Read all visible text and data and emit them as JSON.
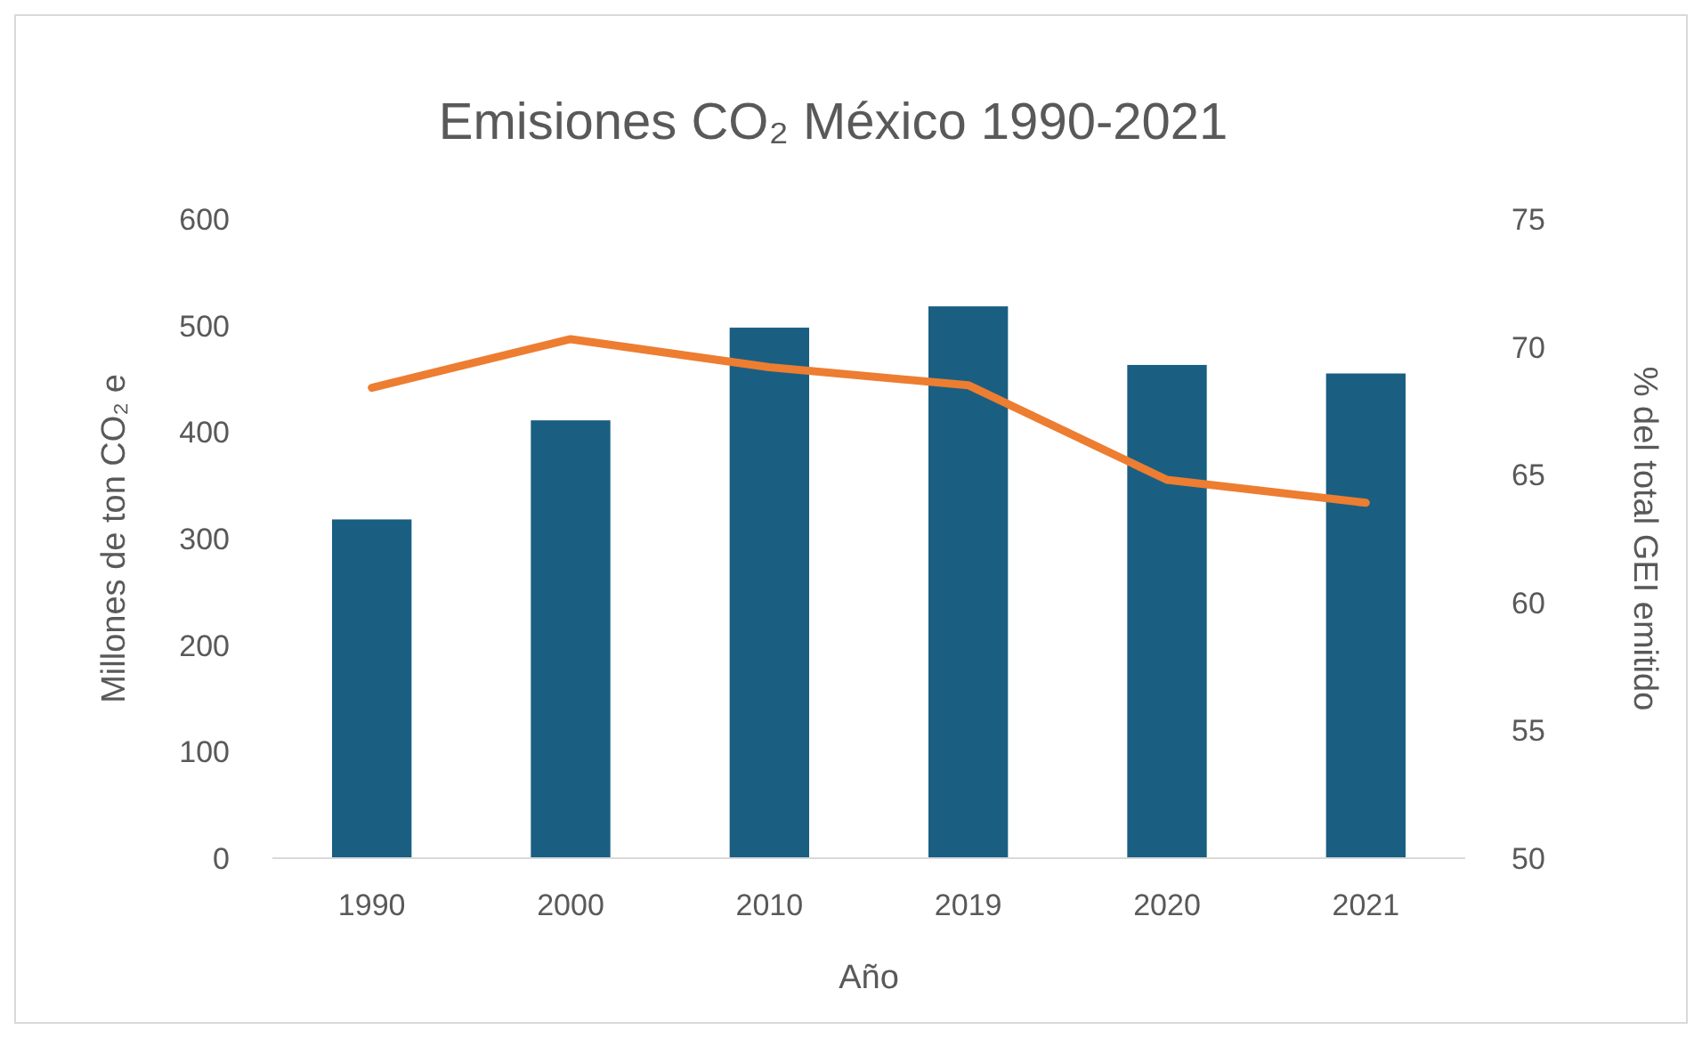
{
  "chart_data": {
    "type": "bar",
    "title": "Emisiones CO₂ México 1990-2021",
    "xlabel": "Año",
    "ylabel": "Millones de ton CO₂ e",
    "y2label": "% del total GEI emitido",
    "categories": [
      "1990",
      "2000",
      "2010",
      "2019",
      "2020",
      "2021"
    ],
    "series": [
      {
        "color": "#1a5f82",
        "values": [
          318,
          411,
          498,
          518,
          463,
          455
        ]
      },
      {
        "type": "line",
        "axis": "y2",
        "color": "#ed7d31",
        "values": [
          68.4,
          70.3,
          69.2,
          68.5,
          64.8,
          63.9
        ]
      }
    ],
    "ylim": [
      0,
      600
    ],
    "yticks": [
      0,
      100,
      200,
      300,
      400,
      500,
      600
    ],
    "y2lim": [
      50,
      75
    ],
    "y2ticks": [
      50,
      55,
      60,
      65,
      70,
      75
    ],
    "grid": false,
    "marker": "none",
    "line_style": "solid"
  }
}
